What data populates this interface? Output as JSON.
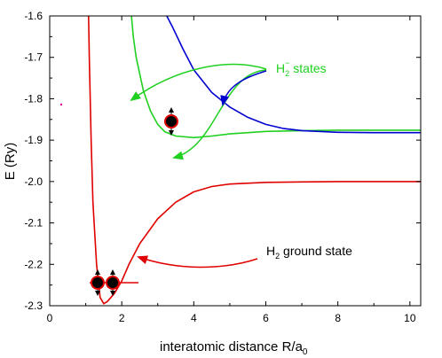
{
  "chart_data": {
    "type": "line",
    "xlabel": "interatomic distance R/a",
    "xlabel_sub": "0",
    "ylabel": "E (Ry)",
    "xlim": [
      0,
      10.3
    ],
    "ylim": [
      -2.3,
      -1.6
    ],
    "x_ticks": [
      0,
      2,
      4,
      6,
      8,
      10
    ],
    "y_ticks": [
      -2.3,
      -2.2,
      -2.1,
      -2.0,
      -1.9,
      -1.8,
      -1.7,
      -1.6
    ],
    "x_tick_labels": [
      "0",
      "2",
      "4",
      "6",
      "8",
      "10"
    ],
    "y_tick_labels": [
      "-2.3",
      "-2.2",
      "-2.1",
      "-2.0",
      "-1.9",
      "-1.8",
      "-1.7",
      "-1.6"
    ],
    "grid": false,
    "series": [
      {
        "color": "#e00000",
        "x": [
          1.08,
          1.1,
          1.15,
          1.2,
          1.3,
          1.4,
          1.5,
          1.6,
          1.8,
          2.0,
          2.2,
          2.5,
          3.0,
          3.5,
          4.0,
          4.5,
          5.0,
          6.0,
          7.0,
          8.0,
          9.0,
          10.3
        ],
        "y": [
          -1.6,
          -1.7,
          -1.9,
          -2.05,
          -2.2,
          -2.28,
          -2.295,
          -2.29,
          -2.27,
          -2.24,
          -2.2,
          -2.15,
          -2.09,
          -2.05,
          -2.025,
          -2.012,
          -2.006,
          -2.002,
          -2.001,
          -2.0,
          -2.0,
          -2.0
        ]
      },
      {
        "color": "#20d020",
        "x": [
          2.27,
          2.32,
          2.4,
          2.6,
          2.8,
          3.0,
          3.2,
          3.5,
          4.0,
          4.5,
          5.0,
          6.0,
          7.0,
          8.0,
          9.0,
          10.3
        ],
        "y": [
          -1.6,
          -1.65,
          -1.7,
          -1.78,
          -1.83,
          -1.862,
          -1.88,
          -1.89,
          -1.894,
          -1.89,
          -1.885,
          -1.879,
          -1.877,
          -1.876,
          -1.876,
          -1.876
        ]
      },
      {
        "color": "#0000d0",
        "x": [
          3.25,
          3.4,
          3.7,
          4.0,
          4.5,
          5.0,
          5.5,
          6.0,
          6.5,
          7.0,
          8.0,
          9.0,
          10.3
        ],
        "y": [
          -1.6,
          -1.625,
          -1.68,
          -1.73,
          -1.785,
          -1.82,
          -1.845,
          -1.862,
          -1.872,
          -1.877,
          -1.881,
          -1.882,
          -1.882
        ]
      }
    ],
    "annotations": {
      "h2minus": {
        "base": "H",
        "sub": "2",
        "sup": "−",
        "rest": " states",
        "color": "#20d020"
      },
      "h2ground": {
        "base": "H",
        "sub": "2",
        "rest": " ground state",
        "color": "#000000"
      }
    }
  }
}
